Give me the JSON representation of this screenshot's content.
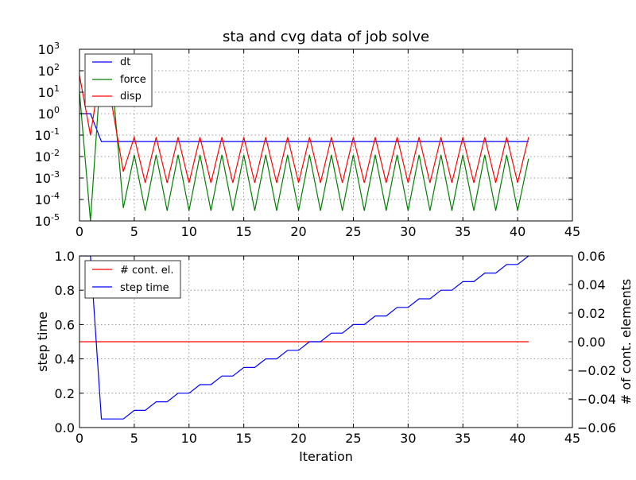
{
  "chart_data": [
    {
      "type": "line",
      "title": "sta and cvg data of job solve",
      "xlabel": "",
      "ylabel": "",
      "yscale": "log",
      "xlim": [
        0,
        45
      ],
      "ylim": [
        1e-05,
        1000
      ],
      "xticks": [
        "0",
        "5",
        "10",
        "15",
        "20",
        "25",
        "30",
        "35",
        "40",
        "45"
      ],
      "ytick_labels": [
        {
          "base": "10",
          "exp": "-5"
        },
        {
          "base": "10",
          "exp": "-4"
        },
        {
          "base": "10",
          "exp": "-3"
        },
        {
          "base": "10",
          "exp": "-2"
        },
        {
          "base": "10",
          "exp": "-1"
        },
        {
          "base": "10",
          "exp": "0"
        },
        {
          "base": "10",
          "exp": "1"
        },
        {
          "base": "10",
          "exp": "2"
        },
        {
          "base": "10",
          "exp": "3"
        }
      ],
      "grid": true,
      "legend_position": "upper-left",
      "series": [
        {
          "name": "dt",
          "color": "#0000ff",
          "points": [
            [
              0,
              1.0
            ],
            [
              1,
              1.0
            ],
            [
              2,
              0.05
            ],
            [
              3,
              0.05
            ],
            [
              41,
              0.05
            ]
          ]
        },
        {
          "name": "force",
          "color": "#008000",
          "points": [
            [
              0,
              10
            ],
            [
              1,
              1e-05
            ],
            [
              2,
              300
            ],
            [
              3,
              30
            ],
            [
              4,
              4e-05
            ],
            [
              5,
              0.012
            ],
            [
              6,
              3e-05
            ],
            [
              7,
              0.012
            ],
            [
              8,
              3e-05
            ],
            [
              9,
              0.012
            ],
            [
              10,
              3e-05
            ],
            [
              11,
              0.012
            ],
            [
              12,
              3e-05
            ],
            [
              13,
              0.012
            ],
            [
              14,
              3e-05
            ],
            [
              15,
              0.012
            ],
            [
              16,
              3e-05
            ],
            [
              17,
              0.012
            ],
            [
              18,
              3e-05
            ],
            [
              19,
              0.012
            ],
            [
              20,
              3e-05
            ],
            [
              21,
              0.012
            ],
            [
              22,
              3e-05
            ],
            [
              23,
              0.012
            ],
            [
              24,
              3e-05
            ],
            [
              25,
              0.012
            ],
            [
              26,
              3e-05
            ],
            [
              27,
              0.012
            ],
            [
              28,
              3e-05
            ],
            [
              29,
              0.012
            ],
            [
              30,
              3e-05
            ],
            [
              31,
              0.012
            ],
            [
              32,
              3e-05
            ],
            [
              33,
              0.012
            ],
            [
              34,
              3e-05
            ],
            [
              35,
              0.012
            ],
            [
              36,
              3e-05
            ],
            [
              37,
              0.012
            ],
            [
              38,
              3e-05
            ],
            [
              39,
              0.012
            ],
            [
              40,
              3e-05
            ],
            [
              41,
              0.008
            ]
          ]
        },
        {
          "name": "disp",
          "color": "#ff0000",
          "points": [
            [
              0,
              60
            ],
            [
              1,
              0.1
            ],
            [
              2,
              200
            ],
            [
              3,
              2
            ],
            [
              4,
              0.002
            ],
            [
              5,
              0.08
            ],
            [
              6,
              0.0006
            ],
            [
              7,
              0.08
            ],
            [
              8,
              0.0006
            ],
            [
              9,
              0.08
            ],
            [
              10,
              0.0006
            ],
            [
              11,
              0.08
            ],
            [
              12,
              0.0006
            ],
            [
              13,
              0.08
            ],
            [
              14,
              0.0006
            ],
            [
              15,
              0.08
            ],
            [
              16,
              0.0006
            ],
            [
              17,
              0.08
            ],
            [
              18,
              0.0006
            ],
            [
              19,
              0.08
            ],
            [
              20,
              0.0006
            ],
            [
              21,
              0.08
            ],
            [
              22,
              0.0006
            ],
            [
              23,
              0.08
            ],
            [
              24,
              0.0006
            ],
            [
              25,
              0.08
            ],
            [
              26,
              0.0006
            ],
            [
              27,
              0.08
            ],
            [
              28,
              0.0006
            ],
            [
              29,
              0.08
            ],
            [
              30,
              0.0006
            ],
            [
              31,
              0.08
            ],
            [
              32,
              0.0006
            ],
            [
              33,
              0.08
            ],
            [
              34,
              0.0006
            ],
            [
              35,
              0.08
            ],
            [
              36,
              0.0006
            ],
            [
              37,
              0.08
            ],
            [
              38,
              0.0006
            ],
            [
              39,
              0.08
            ],
            [
              40,
              0.0006
            ],
            [
              41,
              0.08
            ]
          ]
        }
      ]
    },
    {
      "type": "line",
      "title": "",
      "xlabel": "Iteration",
      "ylabel": "step time",
      "ylabel_right": "# of cont. elements",
      "xlim": [
        0,
        45
      ],
      "ylim": [
        0,
        1
      ],
      "ylim_right": [
        -0.06,
        0.06
      ],
      "xticks": [
        "0",
        "5",
        "10",
        "15",
        "20",
        "25",
        "30",
        "35",
        "40",
        "45"
      ],
      "yticks": [
        "0.0",
        "0.2",
        "0.4",
        "0.6",
        "0.8",
        "1.0"
      ],
      "yticks_right": [
        "−0.06",
        "−0.04",
        "−0.02",
        "0.00",
        "0.02",
        "0.04",
        "0.06"
      ],
      "grid": true,
      "legend_position": "upper-left",
      "series": [
        {
          "name": "# cont. el.",
          "color": "#ff0000",
          "axis": "right",
          "points": [
            [
              0,
              0
            ],
            [
              41,
              0
            ]
          ]
        },
        {
          "name": "step time",
          "color": "#0000ff",
          "axis": "left",
          "points": [
            [
              0,
              1.0
            ],
            [
              1,
              1.0
            ],
            [
              2,
              0.05
            ],
            [
              3,
              0.05
            ],
            [
              4,
              0.05
            ],
            [
              5,
              0.1
            ],
            [
              6,
              0.1
            ],
            [
              7,
              0.15
            ],
            [
              8,
              0.15
            ],
            [
              9,
              0.2
            ],
            [
              10,
              0.2
            ],
            [
              11,
              0.25
            ],
            [
              12,
              0.25
            ],
            [
              13,
              0.3
            ],
            [
              14,
              0.3
            ],
            [
              15,
              0.35
            ],
            [
              16,
              0.35
            ],
            [
              17,
              0.4
            ],
            [
              18,
              0.4
            ],
            [
              19,
              0.45
            ],
            [
              20,
              0.45
            ],
            [
              21,
              0.5
            ],
            [
              22,
              0.5
            ],
            [
              23,
              0.55
            ],
            [
              24,
              0.55
            ],
            [
              25,
              0.6
            ],
            [
              26,
              0.6
            ],
            [
              27,
              0.65
            ],
            [
              28,
              0.65
            ],
            [
              29,
              0.7
            ],
            [
              30,
              0.7
            ],
            [
              31,
              0.75
            ],
            [
              32,
              0.75
            ],
            [
              33,
              0.8
            ],
            [
              34,
              0.8
            ],
            [
              35,
              0.85
            ],
            [
              36,
              0.85
            ],
            [
              37,
              0.9
            ],
            [
              38,
              0.9
            ],
            [
              39,
              0.95
            ],
            [
              40,
              0.95
            ],
            [
              41,
              1.0
            ]
          ]
        }
      ]
    }
  ]
}
